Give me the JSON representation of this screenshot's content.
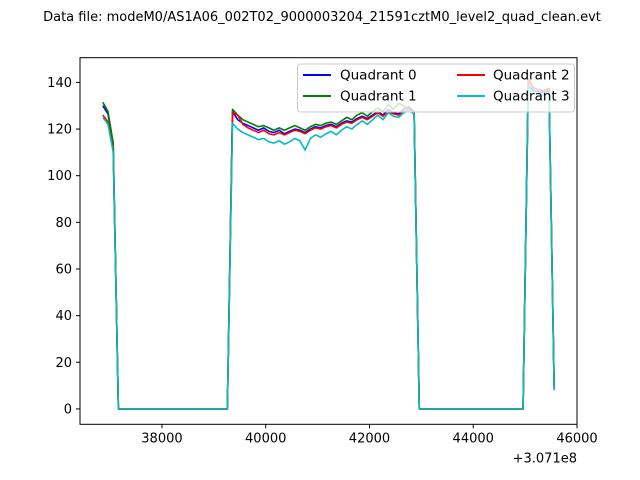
{
  "title": "Data file: modeM0/AS1A06_002T02_9000003204_21591cztM0_level2_quad_clean.evt",
  "chart_data": {
    "type": "line",
    "title": "Data file: modeM0/AS1A06_002T02_9000003204_21591cztM0_level2_quad_clean.evt",
    "xlabel": "",
    "ylabel": "",
    "x_axis_offset_label": "+3.071e8",
    "x_ticks": [
      38000,
      40000,
      42000,
      44000,
      46000
    ],
    "y_ticks": [
      0,
      20,
      40,
      60,
      80,
      100,
      120,
      140
    ],
    "xlim": [
      36420,
      46000
    ],
    "ylim": [
      -6.6,
      150.6
    ],
    "grid": false,
    "legend_position": "upper right",
    "legend_columns": 2,
    "frame_color": "#000000",
    "legend_edge_color": "#cccccc",
    "legend_face_color": "#ffffff",
    "legend_face_alpha": 0.8,
    "x": [
      36860,
      36960,
      37060,
      37160,
      37260,
      37360,
      37460,
      37560,
      37660,
      37760,
      37860,
      37960,
      38060,
      38160,
      38260,
      38360,
      38460,
      38560,
      38660,
      38760,
      38860,
      38960,
      39060,
      39160,
      39260,
      39360,
      39460,
      39560,
      39660,
      39760,
      39860,
      39960,
      40060,
      40160,
      40260,
      40360,
      40460,
      40560,
      40660,
      40760,
      40860,
      40960,
      41060,
      41160,
      41260,
      41360,
      41460,
      41560,
      41660,
      41760,
      41860,
      41960,
      42060,
      42160,
      42260,
      42360,
      42460,
      42560,
      42660,
      42760,
      42860,
      42960,
      43060,
      43160,
      43260,
      43360,
      43460,
      43560,
      43660,
      43760,
      43860,
      43960,
      44060,
      44160,
      44260,
      44360,
      44460,
      44560,
      44660,
      44760,
      44860,
      44960,
      45060,
      45160,
      45260,
      45360,
      45460,
      45560
    ],
    "series": [
      {
        "name": "Quadrant 0",
        "color": "#0000ff",
        "values": [
          130,
          126.5,
          113,
          0,
          0,
          0,
          0,
          0,
          0,
          0,
          0,
          0,
          0,
          0,
          0,
          0,
          0,
          0,
          0,
          0,
          0,
          0,
          0,
          0,
          0,
          127.5,
          124,
          122.5,
          121.5,
          120.5,
          119.5,
          120.5,
          119,
          118.5,
          119.5,
          118,
          119,
          120,
          119.5,
          118.5,
          120,
          121,
          120.5,
          121.5,
          122,
          121,
          122.5,
          123.5,
          123,
          124.5,
          125.5,
          124.5,
          126,
          127.5,
          126,
          128.5,
          127,
          126.5,
          128.5,
          129.5,
          127.5,
          0,
          0,
          0,
          0,
          0,
          0,
          0,
          0,
          0,
          0,
          0,
          0,
          0,
          0,
          0,
          0,
          0,
          0,
          0,
          0,
          0,
          138.5,
          136.5,
          136,
          135.5,
          136.5,
          9
        ]
      },
      {
        "name": "Quadrant 1",
        "color": "#008000",
        "values": [
          131.5,
          127.5,
          114,
          0,
          0,
          0,
          0,
          0,
          0,
          0,
          0,
          0,
          0,
          0,
          0,
          0,
          0,
          0,
          0,
          0,
          0,
          0,
          0,
          0,
          0,
          128.5,
          126,
          124,
          123,
          122,
          121,
          121.5,
          120.5,
          119.5,
          120.5,
          119.5,
          120.5,
          121.5,
          120.5,
          119.5,
          121,
          122,
          121.5,
          122.5,
          123,
          122,
          123.5,
          125,
          124,
          126,
          127,
          125.5,
          127.5,
          129,
          127.5,
          130.5,
          128.5,
          131,
          130,
          128.5,
          127.5,
          0,
          0,
          0,
          0,
          0,
          0,
          0,
          0,
          0,
          0,
          0,
          0,
          0,
          0,
          0,
          0,
          0,
          0,
          0,
          0,
          0,
          140.5,
          137.5,
          137,
          136.5,
          137.5,
          9.5
        ]
      },
      {
        "name": "Quadrant 2",
        "color": "#ff0000",
        "values": [
          126,
          123,
          111,
          0,
          0,
          0,
          0,
          0,
          0,
          0,
          0,
          0,
          0,
          0,
          0,
          0,
          0,
          0,
          0,
          0,
          0,
          0,
          0,
          0,
          0,
          127,
          126,
          122,
          120.5,
          119.5,
          118.5,
          119.5,
          118,
          117.5,
          118.5,
          117.5,
          118.5,
          119.5,
          119,
          118,
          119.5,
          120.5,
          120,
          121,
          121.5,
          120.5,
          122,
          123,
          122.5,
          124,
          125,
          124,
          125.5,
          127,
          125.5,
          127.5,
          126.5,
          126,
          127.5,
          128.5,
          127,
          0,
          0,
          0,
          0,
          0,
          0,
          0,
          0,
          0,
          0,
          0,
          0,
          0,
          0,
          0,
          0,
          0,
          0,
          0,
          0,
          0,
          141.5,
          138,
          136.5,
          136,
          137,
          8.5
        ]
      },
      {
        "name": "Quadrant 3",
        "color": "#00bfbf",
        "values": [
          125,
          122,
          110,
          0,
          0,
          0,
          0,
          0,
          0,
          0,
          0,
          0,
          0,
          0,
          0,
          0,
          0,
          0,
          0,
          0,
          0,
          0,
          0,
          0,
          0,
          122.5,
          120,
          118.5,
          117.5,
          116.5,
          115.5,
          116,
          114.5,
          114,
          115,
          113.5,
          114.5,
          116,
          115,
          111,
          116,
          117.5,
          116.5,
          118,
          119,
          117.5,
          119.5,
          121,
          120,
          122,
          123.5,
          122,
          124,
          126,
          124,
          127,
          125.5,
          125,
          127,
          128,
          126.5,
          0,
          0,
          0,
          0,
          0,
          0,
          0,
          0,
          0,
          0,
          0,
          0,
          0,
          0,
          0,
          0,
          0,
          0,
          0,
          0,
          0,
          138,
          135.5,
          135,
          134.5,
          135.5,
          8
        ]
      }
    ]
  }
}
